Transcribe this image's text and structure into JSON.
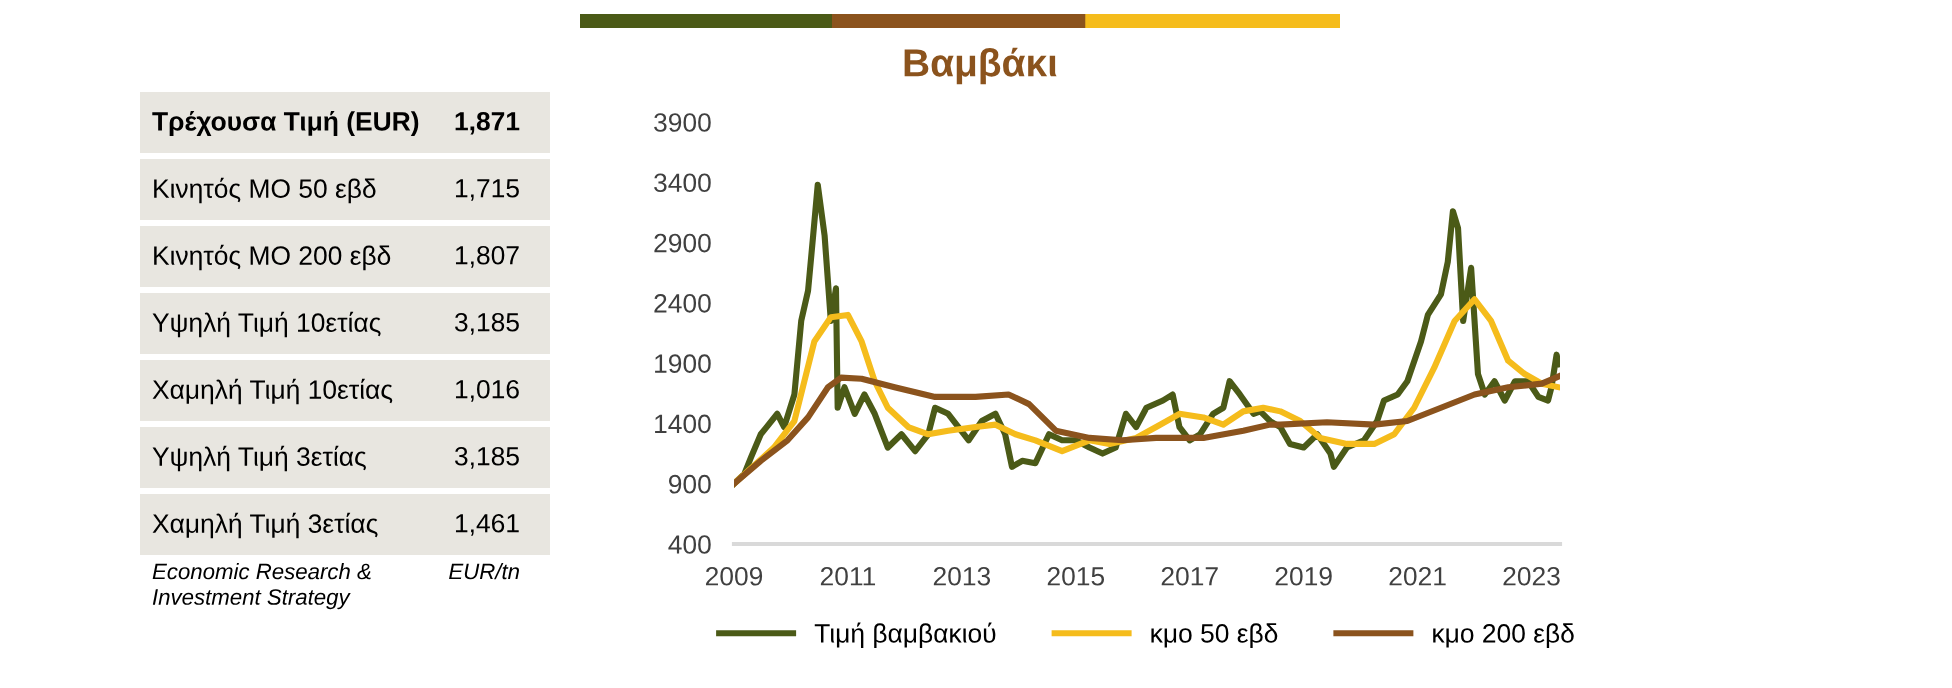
{
  "chart_data": [
    {
      "type": "other",
      "categories": [
        "Τρέχουσα Τιμή (EUR)",
        "Κινητός ΜΟ 50 εβδ",
        "Κινητός ΜΟ 200 εβδ",
        "Υψηλή Τιμή 10ετίας",
        "Χαμηλή Τιμή 10ετίας",
        "Υψηλή Τιμή 3ετίας",
        "Χαμηλή Τιμή 3ετίας"
      ],
      "value_labels": [
        "1,871",
        "1,715",
        "1,807",
        "3,185",
        "1,016",
        "3,185",
        "1,461"
      ],
      "annotations": [
        "Economic Research & Investment Strategy",
        "EUR/tn"
      ]
    },
    {
      "type": "line",
      "title": "Βαμβάκι",
      "xlim": [
        2009,
        2023.5
      ],
      "xticks": [
        2009,
        2011,
        2013,
        2015,
        2017,
        2019,
        2021,
        2023
      ],
      "ylim": [
        400,
        3900
      ],
      "yticks": [
        400,
        900,
        1400,
        1900,
        2400,
        2900,
        3400,
        3900
      ],
      "grid": false,
      "legend": "bottom",
      "series": [
        {
          "name": "Τιμή βαμβακιού",
          "color": "#4b5a17",
          "x": [
            2009.0,
            2009.18,
            2009.3,
            2009.47,
            2009.76,
            2009.88,
            2010.06,
            2010.18,
            2010.3,
            2010.39,
            2010.47,
            2010.59,
            2010.7,
            2010.79,
            2010.82,
            2010.94,
            2011.12,
            2011.29,
            2011.47,
            2011.7,
            2011.94,
            2012.18,
            2012.41,
            2012.53,
            2012.76,
            2012.94,
            2013.12,
            2013.35,
            2013.59,
            2013.76,
            2013.88,
            2014.06,
            2014.29,
            2014.53,
            2014.76,
            2015.0,
            2015.24,
            2015.47,
            2015.7,
            2015.88,
            2016.06,
            2016.24,
            2016.53,
            2016.7,
            2016.82,
            2017.0,
            2017.18,
            2017.41,
            2017.59,
            2017.7,
            2017.88,
            2018.12,
            2018.24,
            2018.41,
            2018.59,
            2018.76,
            2019.0,
            2019.24,
            2019.47,
            2019.53,
            2019.76,
            2020.06,
            2020.29,
            2020.41,
            2020.65,
            2020.82,
            2021.06,
            2021.18,
            2021.41,
            2021.53,
            2021.62,
            2021.71,
            2021.8,
            2021.94,
            2022.06,
            2022.18,
            2022.35,
            2022.53,
            2022.71,
            2022.94,
            2023.12,
            2023.29,
            2023.35,
            2023.44,
            2023.48
          ],
          "values": [
            900,
            980,
            1120,
            1310,
            1480,
            1370,
            1640,
            2250,
            2500,
            2960,
            3380,
            2960,
            2250,
            2520,
            1530,
            1700,
            1480,
            1640,
            1480,
            1200,
            1310,
            1170,
            1310,
            1530,
            1480,
            1370,
            1260,
            1420,
            1480,
            1310,
            1040,
            1090,
            1070,
            1310,
            1260,
            1260,
            1200,
            1150,
            1200,
            1480,
            1370,
            1530,
            1590,
            1640,
            1370,
            1260,
            1310,
            1480,
            1530,
            1750,
            1640,
            1480,
            1500,
            1420,
            1370,
            1230,
            1200,
            1310,
            1150,
            1040,
            1200,
            1260,
            1420,
            1590,
            1640,
            1750,
            2080,
            2300,
            2470,
            2740,
            3160,
            3020,
            2250,
            2690,
            1810,
            1640,
            1750,
            1590,
            1750,
            1750,
            1620,
            1590,
            1700,
            1970,
            1890
          ]
        },
        {
          "name": "κμο 50 εβδ",
          "color": "#f5bc1c",
          "x": [
            2009.0,
            2009.7,
            2010.06,
            2010.41,
            2010.7,
            2011.0,
            2011.24,
            2011.47,
            2011.7,
            2012.06,
            2012.41,
            2012.76,
            2013.24,
            2013.59,
            2013.94,
            2014.29,
            2014.76,
            2015.24,
            2015.59,
            2016.06,
            2016.41,
            2016.82,
            2017.24,
            2017.59,
            2017.94,
            2018.29,
            2018.59,
            2018.94,
            2019.29,
            2019.76,
            2020.24,
            2020.59,
            2020.94,
            2021.29,
            2021.65,
            2022.0,
            2022.29,
            2022.59,
            2022.88,
            2023.18,
            2023.48
          ],
          "values": [
            900,
            1200,
            1420,
            2080,
            2280,
            2300,
            2080,
            1750,
            1530,
            1370,
            1310,
            1340,
            1370,
            1390,
            1310,
            1260,
            1170,
            1260,
            1230,
            1280,
            1370,
            1480,
            1450,
            1390,
            1500,
            1530,
            1500,
            1420,
            1280,
            1230,
            1230,
            1310,
            1530,
            1860,
            2250,
            2430,
            2250,
            1920,
            1810,
            1730,
            1700
          ]
        },
        {
          "name": "κμο 200 εβδ",
          "color": "#8b531d",
          "x": [
            2009.0,
            2009.47,
            2009.94,
            2010.3,
            2010.65,
            2010.88,
            2011.24,
            2011.82,
            2012.53,
            2013.24,
            2013.82,
            2014.18,
            2014.65,
            2015.24,
            2015.82,
            2016.41,
            2017.24,
            2017.94,
            2018.41,
            2018.59,
            2019.41,
            2020.24,
            2020.82,
            2021.41,
            2022.0,
            2022.59,
            2023.18,
            2023.48
          ],
          "values": [
            900,
            1090,
            1260,
            1450,
            1700,
            1780,
            1770,
            1700,
            1620,
            1620,
            1640,
            1560,
            1340,
            1280,
            1260,
            1280,
            1280,
            1340,
            1390,
            1390,
            1410,
            1390,
            1420,
            1530,
            1640,
            1700,
            1730,
            1790
          ]
        }
      ]
    }
  ]
}
